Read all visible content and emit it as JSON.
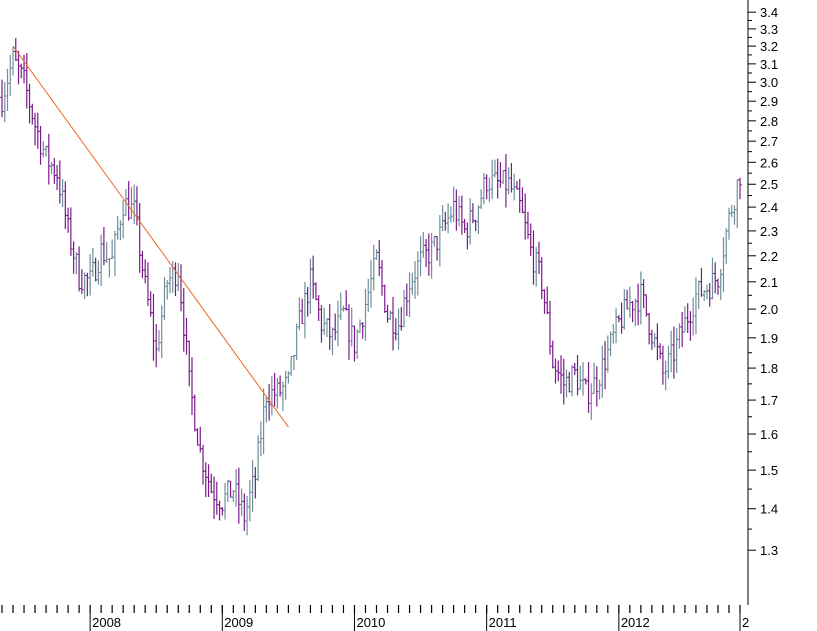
{
  "chart_data": {
    "type": "ohlc",
    "title": "",
    "xlabel": "",
    "ylabel": "",
    "y_scale": "log",
    "y_axis_side": "right",
    "grid": false,
    "ylim": [
      1.2,
      3.45
    ],
    "y_ticks": [
      1.3,
      1.4,
      1.5,
      1.6,
      1.7,
      1.8,
      1.9,
      2.0,
      2.1,
      2.2,
      2.3,
      2.4,
      2.5,
      2.6,
      2.7,
      2.8,
      2.9,
      3.0,
      3.1,
      3.2,
      3.3,
      3.4
    ],
    "y_tick_labels": [
      "1.3",
      "1.4",
      "1.5",
      "1.6",
      "1.7",
      "1.8",
      "1.9",
      "2.0",
      "2.1",
      "2.2",
      "2.3",
      "2.4",
      "2.5",
      "2.6",
      "2.7",
      "2.8",
      "2.9",
      "3.0",
      "3.1",
      "3.2",
      "3.3",
      "3.4"
    ],
    "xlim": [
      "2007-05",
      "2012-12"
    ],
    "x_year_labels": [
      {
        "label": "2008",
        "date": "2008-01"
      },
      {
        "label": "2009",
        "date": "2009-01"
      },
      {
        "label": "2010",
        "date": "2010-01"
      },
      {
        "label": "2011",
        "date": "2011-01"
      },
      {
        "label": "2012",
        "date": "2012-01"
      },
      {
        "label": "2",
        "date": "2013-01"
      }
    ],
    "colors": {
      "up": "#6f8f9a",
      "down": "#7a1a8a",
      "trendline": "#e8692a",
      "axis": "#000000"
    },
    "trendline": {
      "start": {
        "date": "2007-06",
        "value": 3.2
      },
      "end": {
        "date": "2009-07",
        "value": 1.62
      }
    },
    "anchors": [
      [
        "2007-05",
        2.92
      ],
      [
        "2007-06",
        3.12
      ],
      [
        "2007-07",
        3.0
      ],
      [
        "2007-08",
        2.78
      ],
      [
        "2007-09",
        2.62
      ],
      [
        "2007-10",
        2.55
      ],
      [
        "2007-11",
        2.3
      ],
      [
        "2007-12",
        2.12
      ],
      [
        "2008-01",
        2.1
      ],
      [
        "2008-02",
        2.22
      ],
      [
        "2008-03",
        2.18
      ],
      [
        "2008-04",
        2.42
      ],
      [
        "2008-05",
        2.38
      ],
      [
        "2008-06",
        2.08
      ],
      [
        "2008-07",
        1.85
      ],
      [
        "2008-08",
        2.1
      ],
      [
        "2008-09",
        2.15
      ],
      [
        "2008-10",
        1.75
      ],
      [
        "2008-11",
        1.55
      ],
      [
        "2008-12",
        1.45
      ],
      [
        "2009-01",
        1.42
      ],
      [
        "2009-02",
        1.45
      ],
      [
        "2009-03",
        1.38
      ],
      [
        "2009-04",
        1.48
      ],
      [
        "2009-05",
        1.72
      ],
      [
        "2009-06",
        1.72
      ],
      [
        "2009-07",
        1.75
      ],
      [
        "2009-08",
        1.95
      ],
      [
        "2009-09",
        2.1
      ],
      [
        "2009-10",
        1.95
      ],
      [
        "2009-11",
        1.9
      ],
      [
        "2009-12",
        1.98
      ],
      [
        "2010-01",
        1.88
      ],
      [
        "2010-02",
        2.02
      ],
      [
        "2010-03",
        2.18
      ],
      [
        "2010-04",
        1.98
      ],
      [
        "2010-05",
        1.95
      ],
      [
        "2010-06",
        2.1
      ],
      [
        "2010-07",
        2.18
      ],
      [
        "2010-08",
        2.22
      ],
      [
        "2010-09",
        2.3
      ],
      [
        "2010-10",
        2.4
      ],
      [
        "2010-11",
        2.3
      ],
      [
        "2010-12",
        2.38
      ],
      [
        "2011-01",
        2.52
      ],
      [
        "2011-02",
        2.5
      ],
      [
        "2011-03",
        2.5
      ],
      [
        "2011-04",
        2.4
      ],
      [
        "2011-05",
        2.22
      ],
      [
        "2011-06",
        2.1
      ],
      [
        "2011-07",
        1.82
      ],
      [
        "2011-08",
        1.75
      ],
      [
        "2011-09",
        1.78
      ],
      [
        "2011-10",
        1.72
      ],
      [
        "2011-11",
        1.76
      ],
      [
        "2011-12",
        1.85
      ],
      [
        "2012-01",
        1.95
      ],
      [
        "2012-02",
        2.02
      ],
      [
        "2012-03",
        2.05
      ],
      [
        "2012-04",
        1.92
      ],
      [
        "2012-05",
        1.78
      ],
      [
        "2012-06",
        1.85
      ],
      [
        "2012-07",
        1.95
      ],
      [
        "2012-08",
        2.05
      ],
      [
        "2012-09",
        2.08
      ],
      [
        "2012-10",
        2.12
      ],
      [
        "2012-11",
        2.35
      ],
      [
        "2012-12",
        2.55
      ]
    ]
  }
}
